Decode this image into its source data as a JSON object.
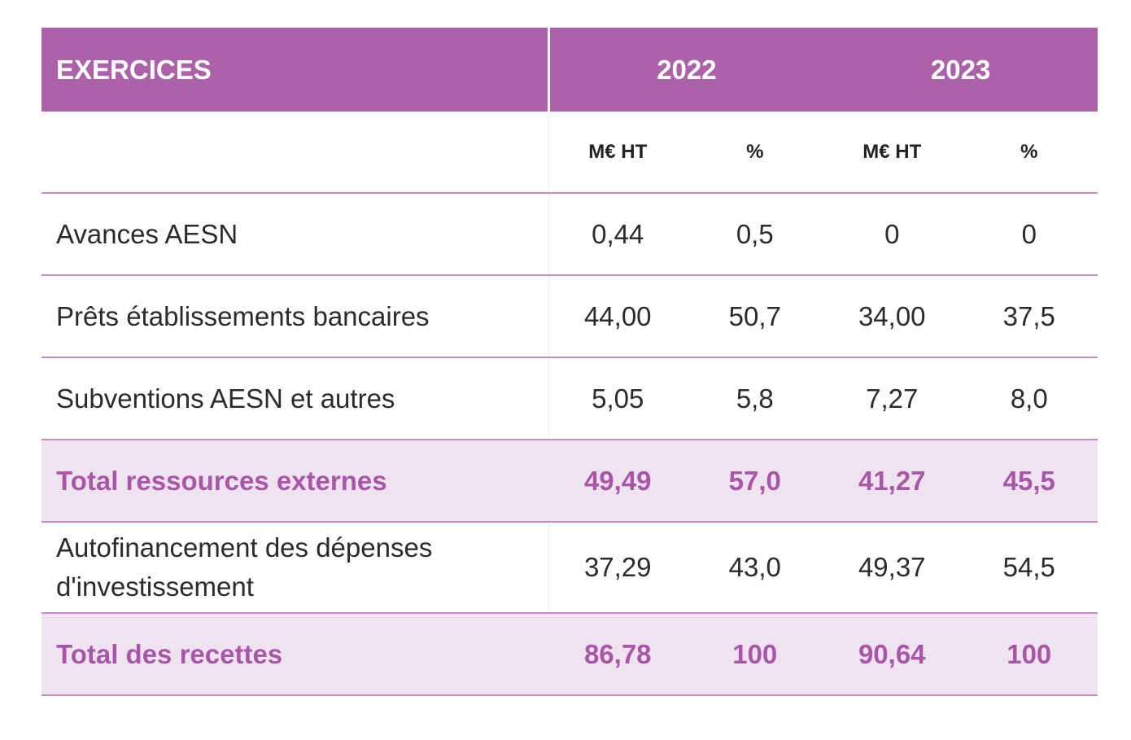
{
  "table": {
    "header": {
      "label": "EXERCICES",
      "years": [
        "2022",
        "2023"
      ]
    },
    "subheader": [
      "M€ HT",
      "%",
      "M€ HT",
      "%"
    ],
    "rows": [
      {
        "label": "Avances AESN",
        "values": [
          "0,44",
          "0,5",
          "0",
          "0"
        ],
        "total": false
      },
      {
        "label": "Prêts établissements bancaires",
        "values": [
          "44,00",
          "50,7",
          "34,00",
          "37,5"
        ],
        "total": false
      },
      {
        "label": "Subventions AESN et autres",
        "values": [
          "5,05",
          "5,8",
          "7,27",
          "8,0"
        ],
        "total": false
      },
      {
        "label": "Total ressources externes",
        "values": [
          "49,49",
          "57,0",
          "41,27",
          "45,5"
        ],
        "total": true
      },
      {
        "label": "Autofinancement des dépenses d'investissement",
        "values": [
          "37,29",
          "43,0",
          "49,37",
          "54,5"
        ],
        "total": false
      },
      {
        "label": "Total des recettes",
        "values": [
          "86,78",
          "100",
          "90,64",
          "100"
        ],
        "total": true
      }
    ]
  },
  "colors": {
    "header_bg": "#ab62a9",
    "total_bg": "#f0e3f0",
    "total_text": "#a956a8",
    "rule": "#c48cc3"
  }
}
